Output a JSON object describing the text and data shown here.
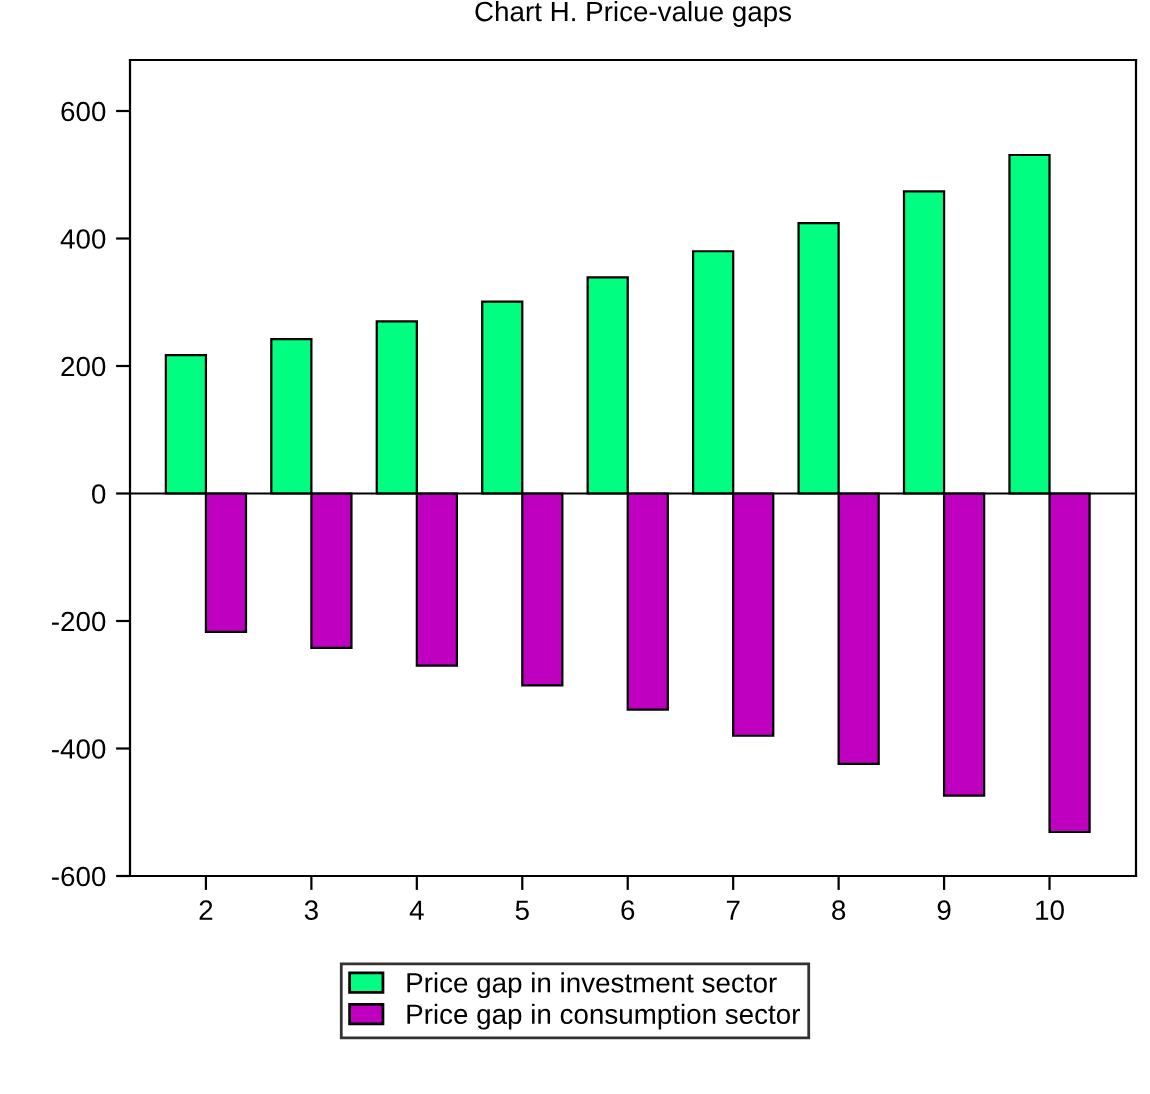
{
  "chart_data": {
    "type": "bar",
    "title": "Chart H. Price-value gaps",
    "categories": [
      "2",
      "3",
      "4",
      "5",
      "6",
      "7",
      "8",
      "9",
      "10"
    ],
    "series": [
      {
        "name": "Price gap in investment sector",
        "color": "#00ff80",
        "values": [
          217,
          242,
          270,
          301,
          339,
          380,
          424,
          474,
          531
        ]
      },
      {
        "name": "Price gap in consumption sector",
        "color": "#c000c0",
        "values": [
          -217,
          -242,
          -270,
          -301,
          -339,
          -380,
          -424,
          -474,
          -531
        ]
      }
    ],
    "ylim": [
      -600,
      680
    ],
    "yticks": [
      -600,
      -400,
      -200,
      0,
      200,
      400,
      600
    ],
    "ref_lines": [
      {
        "axis": "y",
        "value": 0,
        "color": "#000000"
      }
    ],
    "grid": false,
    "legend": "bottom"
  }
}
